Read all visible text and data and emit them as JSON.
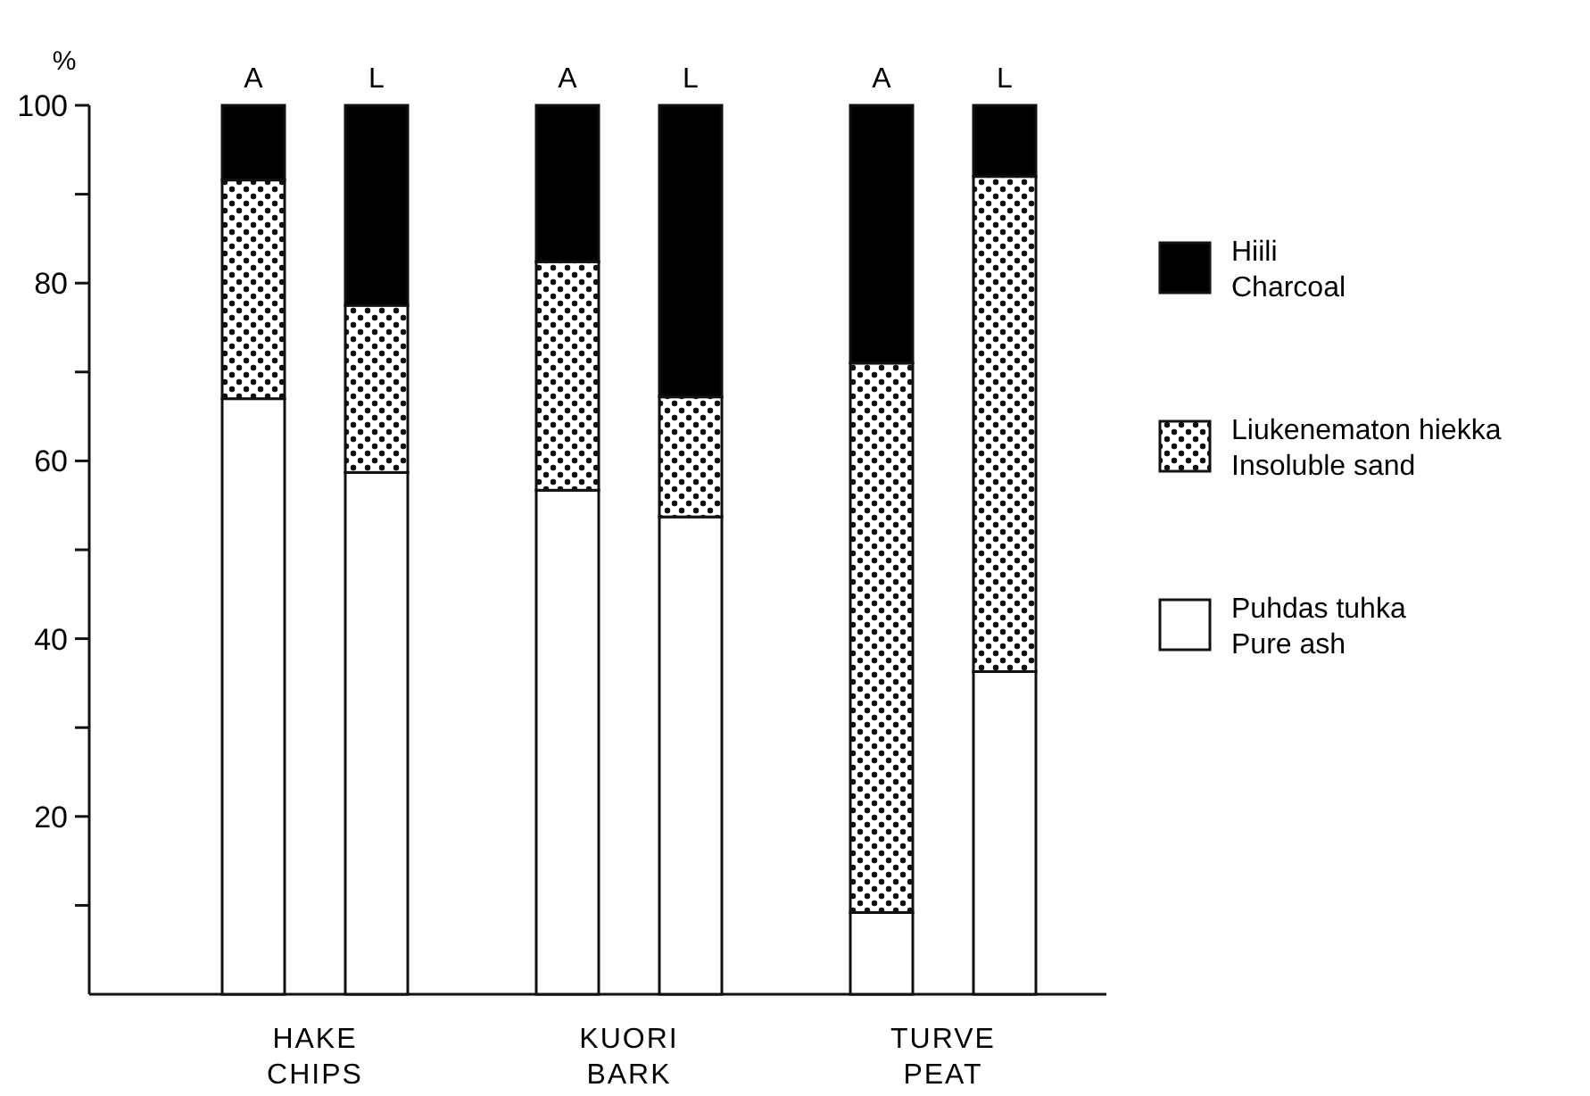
{
  "chart_data": {
    "type": "bar",
    "stacked": true,
    "ylabel": "%",
    "categories": [
      "A",
      "L",
      "A",
      "L",
      "A",
      "L"
    ],
    "annotations": [
      "HAKE\nCHIPS",
      "KUORI\nBARK",
      "TURVE\nPEAT"
    ],
    "series": [
      {
        "name": "Puhdas tuhka\nPure ash",
        "color": "#ffffff",
        "values": [
          67,
          58.7,
          56.7,
          53.7,
          9.2,
          36.3
        ]
      },
      {
        "name": "Liukenematon hiekka\nInsoluble sand",
        "color": "#111111",
        "values": [
          24.6,
          18.8,
          25.7,
          13.5,
          61.8,
          55.7
        ]
      },
      {
        "name": "Hiili\nCharcoal",
        "color": "#000000",
        "values": [
          8.4,
          22.5,
          17.6,
          32.8,
          29,
          8
        ]
      }
    ],
    "ylim": [
      0,
      100
    ],
    "yticks": [
      {
        "value": 10,
        "label": null
      },
      20,
      {
        "value": 30,
        "label": null
      },
      40,
      {
        "value": 50,
        "label": null
      },
      60,
      {
        "value": 70,
        "label": null
      },
      80,
      {
        "value": 90,
        "label": null
      },
      100
    ],
    "legend": "right"
  }
}
